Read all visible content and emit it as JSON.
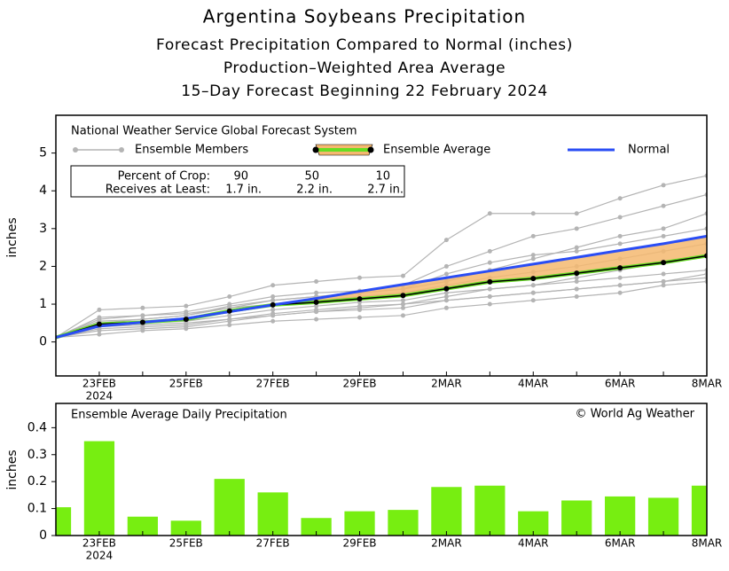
{
  "chart_data": [
    {
      "type": "line",
      "title": "Argentina Soybeans Precipitation",
      "subtitle": [
        "Forecast Precipitation Compared to Normal (inches)",
        "Production–Weighted Area Average",
        "15–Day Forecast Beginning 22 February 2024"
      ],
      "ylabel": "inches",
      "legend_title": "National Weather Service Global Forecast System",
      "categories": [
        null,
        "23FEB",
        null,
        "25FEB",
        null,
        "27FEB",
        null,
        "29FEB",
        null,
        "2MAR",
        null,
        "4MAR",
        null,
        "6MAR",
        null,
        "8MAR"
      ],
      "x_sublabel": "2024",
      "ylim": [
        -0.9,
        6
      ],
      "yticks": [
        0,
        1,
        2,
        3,
        4,
        5
      ],
      "band_color": "#f5b870",
      "band_line_color": "#66dd22",
      "ensemble_members": {
        "name": "Ensemble Members",
        "color": "#b4b4b4",
        "values": [
          [
            0.12,
            0.85,
            0.9,
            0.95,
            1.2,
            1.5,
            1.6,
            1.7,
            1.75,
            2.7,
            3.4,
            3.4,
            3.4,
            3.8,
            4.15,
            4.4
          ],
          [
            0.12,
            0.3,
            0.35,
            0.4,
            0.55,
            0.7,
            0.8,
            0.9,
            1.0,
            1.2,
            1.4,
            1.5,
            1.6,
            1.7,
            1.8,
            1.9
          ],
          [
            0.12,
            0.6,
            0.7,
            0.8,
            1.0,
            1.2,
            1.3,
            1.35,
            1.5,
            2.0,
            2.4,
            2.8,
            3.0,
            3.3,
            3.6,
            3.9
          ],
          [
            0.12,
            0.2,
            0.3,
            0.35,
            0.45,
            0.55,
            0.6,
            0.65,
            0.7,
            0.9,
            1.0,
            1.1,
            1.2,
            1.3,
            1.5,
            1.6
          ],
          [
            0.12,
            0.5,
            0.6,
            0.7,
            0.9,
            1.1,
            1.2,
            1.3,
            1.4,
            1.6,
            1.9,
            2.2,
            2.5,
            2.8,
            3.0,
            3.4
          ],
          [
            0.12,
            0.4,
            0.45,
            0.5,
            0.6,
            0.7,
            0.8,
            0.85,
            0.9,
            1.1,
            1.2,
            1.3,
            1.4,
            1.5,
            1.6,
            1.7
          ],
          [
            0.12,
            0.55,
            0.6,
            0.7,
            0.95,
            1.1,
            1.2,
            1.3,
            1.4,
            1.8,
            2.1,
            2.3,
            2.4,
            2.6,
            2.8,
            3.0
          ],
          [
            0.12,
            0.45,
            0.5,
            0.55,
            0.7,
            0.85,
            0.95,
            1.05,
            1.1,
            1.3,
            1.4,
            1.5,
            1.7,
            1.9,
            2.1,
            2.3
          ],
          [
            0.12,
            0.35,
            0.4,
            0.45,
            0.6,
            0.75,
            0.85,
            0.95,
            1.0,
            1.1,
            1.2,
            1.3,
            1.4,
            1.5,
            1.6,
            1.8
          ],
          [
            0.12,
            0.65,
            0.7,
            0.75,
            0.9,
            1.0,
            1.1,
            1.2,
            1.3,
            1.5,
            1.7,
            1.85,
            2.0,
            2.2,
            2.4,
            2.6
          ]
        ]
      },
      "series": [
        {
          "name": "Ensemble Average",
          "color": "#000000",
          "values": [
            0.12,
            0.47,
            0.52,
            0.6,
            0.82,
            0.98,
            1.05,
            1.14,
            1.23,
            1.41,
            1.59,
            1.68,
            1.82,
            1.96,
            2.1,
            2.28
          ]
        },
        {
          "name": "Normal",
          "color": "#2a4df5",
          "values": [
            0.12,
            0.42,
            0.52,
            0.62,
            0.8,
            0.98,
            1.15,
            1.34,
            1.52,
            1.7,
            1.88,
            2.06,
            2.24,
            2.42,
            2.6,
            2.8
          ]
        }
      ],
      "crop_table": {
        "header": "Percent of Crop:",
        "percents": [
          90,
          50,
          10
        ],
        "label": "Receives at Least:",
        "amounts": [
          "1.7 in.",
          "2.2 in.",
          "2.7 in."
        ]
      }
    },
    {
      "type": "bar",
      "title": "Ensemble Average Daily Precipitation",
      "annotation": "© World Ag Weather",
      "ylabel": "inches",
      "categories": [
        null,
        "23FEB",
        null,
        "25FEB",
        null,
        "27FEB",
        null,
        "29FEB",
        null,
        "2MAR",
        null,
        "4MAR",
        null,
        "6MAR",
        null,
        "8MAR"
      ],
      "x_sublabel": "2024",
      "ylim": [
        0,
        0.49
      ],
      "yticks": [
        0,
        0.1,
        0.2,
        0.3,
        0.4
      ],
      "color": "#77ee11",
      "values": [
        0.105,
        0.35,
        0.07,
        0.055,
        0.21,
        0.16,
        0.065,
        0.09,
        0.095,
        0.18,
        0.185,
        0.09,
        0.13,
        0.145,
        0.14,
        0.185
      ]
    }
  ]
}
